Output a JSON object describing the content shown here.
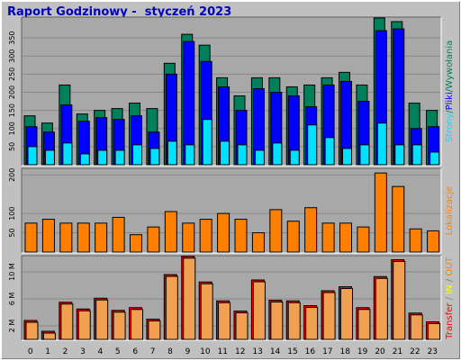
{
  "report": {
    "title_prefix": "Raport Godzinowy -",
    "month": "styczeń 2023"
  },
  "colors": {
    "hits": "#00805a",
    "files": "#0000ff",
    "pages": "#00e0ff",
    "visits": "#ff8000",
    "kbytes": "#ff0000",
    "in": "#ffff00",
    "out": "#ff8000",
    "panel_bg": "#a8a8a8",
    "grid": "#888888"
  },
  "chart_data": [
    {
      "type": "bar",
      "name": "requests",
      "categories": [
        "0",
        "1",
        "2",
        "3",
        "4",
        "5",
        "6",
        "7",
        "8",
        "9",
        "10",
        "11",
        "12",
        "13",
        "14",
        "15",
        "16",
        "17",
        "18",
        "19",
        "20",
        "21",
        "22",
        "23"
      ],
      "ylim": [
        0,
        400
      ],
      "yticks": [
        50,
        100,
        150,
        200,
        250,
        300,
        350
      ],
      "side_label_parts": [
        {
          "text": "Strony",
          "color": "#00e0ff"
        },
        {
          "text": "/",
          "color": "#00805a"
        },
        {
          "text": "Pliki",
          "color": "#0000ff"
        },
        {
          "text": "/",
          "color": "#00805a"
        },
        {
          "text": "Wywołania",
          "color": "#00805a"
        }
      ],
      "series": [
        {
          "key": "hits",
          "values": [
            135,
            115,
            220,
            140,
            150,
            155,
            170,
            155,
            280,
            360,
            330,
            240,
            190,
            240,
            240,
            215,
            220,
            240,
            255,
            220,
            405,
            395,
            170,
            150
          ]
        },
        {
          "key": "files",
          "values": [
            105,
            90,
            165,
            120,
            130,
            125,
            135,
            90,
            250,
            340,
            285,
            215,
            150,
            210,
            200,
            190,
            160,
            220,
            230,
            175,
            370,
            375,
            100,
            105
          ]
        },
        {
          "key": "pages",
          "values": [
            50,
            40,
            60,
            30,
            40,
            40,
            55,
            45,
            65,
            55,
            125,
            65,
            55,
            40,
            60,
            40,
            110,
            75,
            45,
            55,
            115,
            55,
            55,
            35
          ]
        }
      ]
    },
    {
      "type": "bar",
      "name": "visits",
      "categories": [
        "0",
        "1",
        "2",
        "3",
        "4",
        "5",
        "6",
        "7",
        "8",
        "9",
        "10",
        "11",
        "12",
        "13",
        "14",
        "15",
        "16",
        "17",
        "18",
        "19",
        "20",
        "21",
        "22",
        "23"
      ],
      "ylim": [
        0,
        210
      ],
      "yticks": [
        50,
        100,
        200
      ],
      "side_label_parts": [
        {
          "text": "Lokalizacje",
          "color": "#ff8000"
        }
      ],
      "series": [
        {
          "key": "visits",
          "values": [
            75,
            85,
            75,
            75,
            75,
            90,
            45,
            65,
            105,
            75,
            85,
            100,
            85,
            50,
            110,
            80,
            115,
            75,
            75,
            65,
            205,
            170,
            60,
            55
          ]
        }
      ]
    },
    {
      "type": "bar",
      "name": "transfer",
      "categories": [
        "0",
        "1",
        "2",
        "3",
        "4",
        "5",
        "6",
        "7",
        "8",
        "9",
        "10",
        "11",
        "12",
        "13",
        "14",
        "15",
        "16",
        "17",
        "18",
        "19",
        "20",
        "21",
        "22",
        "23"
      ],
      "ylim": [
        0,
        12000000
      ],
      "yticks": [
        2000000,
        6000000,
        10000000
      ],
      "ytick_labels": [
        "2 M",
        "6 M",
        "10 M"
      ],
      "side_label_parts": [
        {
          "text": "Transfer",
          "color": "#ff0000"
        },
        {
          "text": " / ",
          "color": "#808080"
        },
        {
          "text": "IN",
          "color": "#ffff00"
        },
        {
          "text": " / ",
          "color": "#808080"
        },
        {
          "text": "OUT",
          "color": "#ff8000"
        }
      ],
      "series": [
        {
          "key": "kbytes",
          "values": [
            2800000,
            1200000,
            5500000,
            4500000,
            6100000,
            4300000,
            4700000,
            3000000,
            9600000,
            12300000,
            8500000,
            5700000,
            4200000,
            8800000,
            5800000,
            5700000,
            5000000,
            7200000,
            7800000,
            4700000,
            9300000,
            11800000,
            3900000,
            2600000
          ]
        }
      ]
    }
  ]
}
